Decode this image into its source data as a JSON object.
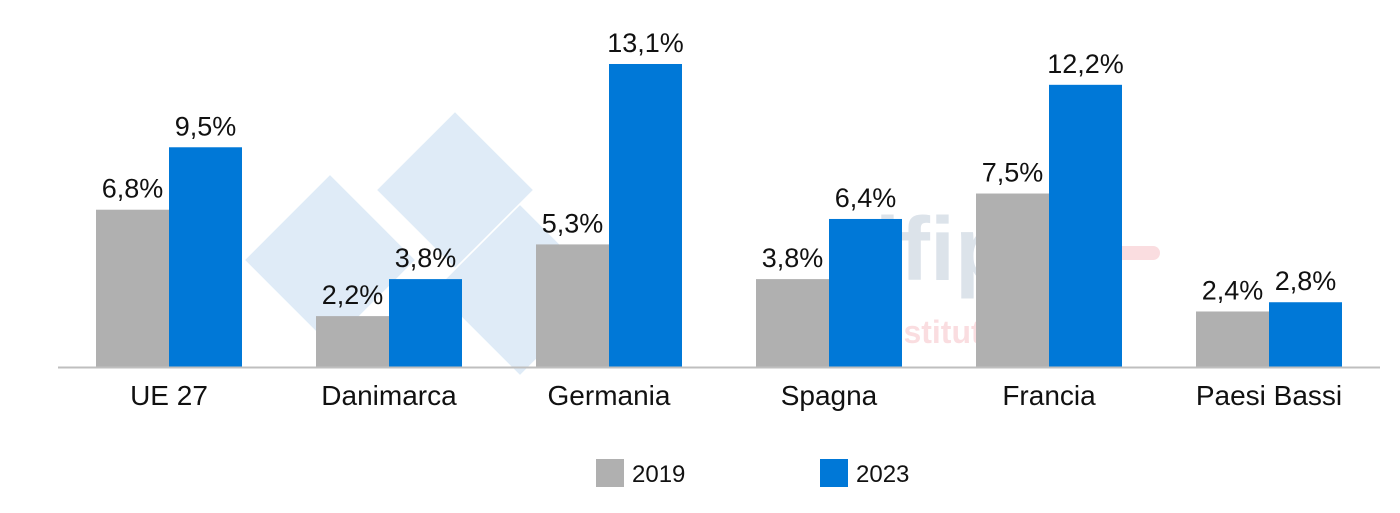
{
  "chart_data": {
    "type": "bar",
    "title": "",
    "xlabel": "",
    "ylabel": "",
    "ylim": [
      0,
      14
    ],
    "grid": false,
    "legend_position": "bottom",
    "categories": [
      "UE 27",
      "Danimarca",
      "Germania",
      "Spagna",
      "Francia",
      "Paesi Bassi"
    ],
    "series": [
      {
        "name": "2019",
        "color": "#b0b0b0",
        "values": [
          6.8,
          2.2,
          5.3,
          3.8,
          7.5,
          2.4
        ],
        "labels": [
          "6,8%",
          "2,2%",
          "5,3%",
          "3,8%",
          "7,5%",
          "2,4%"
        ]
      },
      {
        "name": "2023",
        "color": "#0078d7",
        "values": [
          9.5,
          3.8,
          13.1,
          6.4,
          12.2,
          2.8
        ],
        "labels": [
          "9,5%",
          "3,8%",
          "13,1%",
          "6,4%",
          "12,2%",
          "2,8%"
        ]
      }
    ]
  },
  "watermarks": {
    "logo_333": "3 3 3",
    "ifip": "ifip",
    "ifip_tagline": "Institut du porc"
  }
}
